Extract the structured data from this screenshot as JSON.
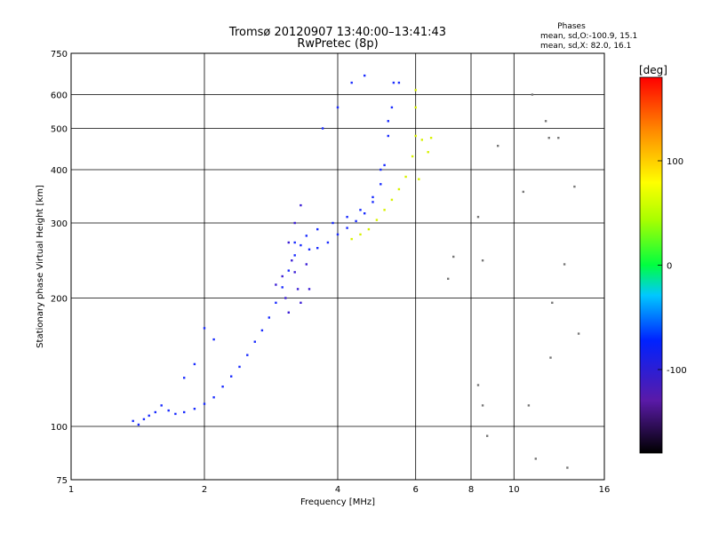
{
  "chart_data": {
    "type": "scatter",
    "title": "Tromsø 20120907 13:40:00–13:41:43",
    "subtitle": "RwPretec (8p)",
    "xlabel": "Frequency [MHz]",
    "ylabel": "Stationary phase Virtual Height [km]",
    "x_scale": "log",
    "y_scale": "log",
    "xlim": [
      1,
      16
    ],
    "ylim": [
      75,
      750
    ],
    "x_ticks": [
      1,
      2,
      4,
      6,
      8,
      10,
      16
    ],
    "x_tick_labels": [
      "1",
      "2",
      "4",
      "6",
      "8",
      "10",
      "16"
    ],
    "y_ticks": [
      75,
      100,
      200,
      300,
      400,
      500,
      600,
      750
    ],
    "y_tick_labels": [
      "75",
      "100",
      "200",
      "300",
      "400",
      "500",
      "600",
      "750"
    ],
    "grid": true,
    "phases_box": {
      "title": "Phases",
      "line_o": "mean, sd,O:-100.9, 15.1",
      "line_x": "mean, sd,X:  82.0, 16.1"
    },
    "colorbar": {
      "label": "[deg]",
      "range": [
        -180,
        180
      ],
      "ticks": [
        100,
        0,
        -100
      ],
      "tick_labels": [
        "100",
        "0",
        "-100"
      ]
    },
    "series": [
      {
        "mode": "O",
        "phase": -100.9,
        "color": "#1a2cff",
        "points": [
          [
            1.38,
            103
          ],
          [
            1.42,
            101
          ],
          [
            1.46,
            104
          ],
          [
            1.5,
            106
          ],
          [
            1.55,
            108
          ],
          [
            1.6,
            112
          ],
          [
            1.66,
            109
          ],
          [
            1.72,
            107
          ],
          [
            1.8,
            108
          ],
          [
            1.9,
            110
          ],
          [
            2.0,
            113
          ],
          [
            2.1,
            117
          ],
          [
            2.2,
            124
          ],
          [
            2.3,
            131
          ],
          [
            2.4,
            138
          ],
          [
            2.5,
            147
          ],
          [
            2.6,
            158
          ],
          [
            2.7,
            168
          ],
          [
            2.8,
            180
          ],
          [
            2.9,
            195
          ],
          [
            3.0,
            212
          ],
          [
            3.1,
            232
          ],
          [
            3.2,
            252
          ],
          [
            3.3,
            266
          ],
          [
            3.45,
            260
          ],
          [
            3.6,
            262
          ],
          [
            3.8,
            270
          ],
          [
            4.0,
            282
          ],
          [
            4.2,
            292
          ],
          [
            4.4,
            303
          ],
          [
            4.6,
            316
          ],
          [
            4.8,
            336
          ],
          [
            5.0,
            370
          ],
          [
            5.1,
            410
          ],
          [
            5.2,
            480
          ],
          [
            5.3,
            560
          ],
          [
            5.35,
            640
          ],
          [
            3.2,
            270
          ],
          [
            3.4,
            280
          ],
          [
            3.6,
            290
          ],
          [
            3.9,
            300
          ],
          [
            4.2,
            310
          ],
          [
            4.5,
            322
          ],
          [
            4.8,
            345
          ],
          [
            5.0,
            400
          ],
          [
            5.2,
            520
          ],
          [
            1.8,
            130
          ],
          [
            1.9,
            140
          ],
          [
            2.0,
            170
          ],
          [
            2.1,
            160
          ],
          [
            3.7,
            500
          ],
          [
            4.0,
            560
          ],
          [
            4.3,
            640
          ],
          [
            4.6,
            665
          ],
          [
            5.5,
            640
          ]
        ]
      },
      {
        "mode": "O",
        "phase": -125,
        "color": "#3c1fd6",
        "points": [
          [
            2.9,
            215
          ],
          [
            3.0,
            225
          ],
          [
            3.05,
            200
          ],
          [
            3.1,
            185
          ],
          [
            3.15,
            245
          ],
          [
            3.2,
            230
          ],
          [
            3.25,
            210
          ],
          [
            3.3,
            195
          ],
          [
            3.2,
            300
          ],
          [
            3.3,
            330
          ],
          [
            3.4,
            240
          ],
          [
            3.45,
            210
          ],
          [
            3.1,
            270
          ]
        ]
      },
      {
        "mode": "X",
        "phase": 82.0,
        "color": "#d8f200",
        "points": [
          [
            4.3,
            275
          ],
          [
            4.5,
            282
          ],
          [
            4.7,
            290
          ],
          [
            4.9,
            305
          ],
          [
            5.1,
            322
          ],
          [
            5.3,
            340
          ],
          [
            5.5,
            360
          ],
          [
            5.7,
            385
          ],
          [
            5.9,
            430
          ],
          [
            6.0,
            480
          ],
          [
            6.0,
            560
          ],
          [
            6.0,
            615
          ],
          [
            6.2,
            470
          ],
          [
            6.4,
            440
          ],
          [
            6.5,
            475
          ],
          [
            6.1,
            380
          ]
        ]
      },
      {
        "mode": "noise",
        "phase": 0,
        "color": "#777777",
        "points": [
          [
            8.3,
            125
          ],
          [
            8.5,
            112
          ],
          [
            8.5,
            245
          ],
          [
            8.7,
            95
          ],
          [
            9.2,
            455
          ],
          [
            10.5,
            355
          ],
          [
            10.8,
            112
          ],
          [
            11.0,
            600
          ],
          [
            11.2,
            84
          ],
          [
            11.8,
            520
          ],
          [
            12.0,
            475
          ],
          [
            12.2,
            195
          ],
          [
            12.6,
            475
          ],
          [
            13.0,
            240
          ],
          [
            13.2,
            80
          ],
          [
            13.7,
            365
          ],
          [
            14.0,
            165
          ],
          [
            8.3,
            310
          ],
          [
            7.3,
            250
          ],
          [
            7.1,
            222
          ],
          [
            12.1,
            145
          ]
        ]
      }
    ]
  }
}
